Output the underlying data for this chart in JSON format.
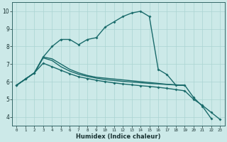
{
  "xlabel": "Humidex (Indice chaleur)",
  "xlim": [
    -0.5,
    23.5
  ],
  "ylim": [
    3.5,
    10.5
  ],
  "bg_color": "#cce9e8",
  "grid_color": "#aad4d2",
  "line_color": "#1a6b6b",
  "line1_x": [
    0,
    1,
    2,
    3,
    4,
    5,
    6,
    7,
    8,
    9,
    10,
    11,
    12,
    13,
    14,
    15,
    16,
    17,
    18,
    19,
    20,
    21,
    22
  ],
  "line1_y": [
    5.8,
    6.15,
    6.5,
    7.4,
    8.0,
    8.4,
    8.4,
    8.1,
    8.4,
    8.5,
    9.1,
    9.4,
    9.7,
    9.9,
    10.0,
    9.7,
    6.7,
    6.4,
    5.8,
    5.8,
    5.1,
    4.6,
    3.9
  ],
  "line2_x": [
    0,
    1,
    2,
    3,
    4,
    5,
    6,
    7,
    8,
    9,
    10,
    11,
    12,
    13,
    14,
    15,
    16,
    17,
    18,
    19
  ],
  "line2_y": [
    5.8,
    6.15,
    6.5,
    7.4,
    7.3,
    7.0,
    6.7,
    6.5,
    6.35,
    6.25,
    6.2,
    6.15,
    6.1,
    6.05,
    6.0,
    5.95,
    5.9,
    5.85,
    5.82,
    5.8
  ],
  "line3_x": [
    0,
    1,
    2,
    3,
    4,
    5,
    6,
    7,
    8,
    9,
    10,
    11,
    12,
    13,
    14,
    15,
    16,
    17,
    18,
    19
  ],
  "line3_y": [
    5.8,
    6.15,
    6.5,
    7.35,
    7.2,
    6.85,
    6.6,
    6.42,
    6.3,
    6.2,
    6.12,
    6.07,
    6.02,
    5.98,
    5.94,
    5.9,
    5.87,
    5.84,
    5.81,
    5.78
  ],
  "line4_x": [
    0,
    1,
    2,
    3,
    4,
    5,
    6,
    7,
    8,
    9,
    10,
    11,
    12,
    13,
    14,
    15,
    16,
    17,
    18,
    19,
    20,
    21,
    22,
    23
  ],
  "line4_y": [
    5.8,
    6.15,
    6.5,
    7.05,
    6.85,
    6.65,
    6.45,
    6.28,
    6.18,
    6.08,
    6.0,
    5.93,
    5.87,
    5.82,
    5.77,
    5.73,
    5.68,
    5.62,
    5.55,
    5.48,
    5.0,
    4.65,
    4.25,
    3.85
  ],
  "yticks": [
    4,
    5,
    6,
    7,
    8,
    9,
    10
  ],
  "xticks": [
    0,
    1,
    2,
    3,
    4,
    5,
    6,
    7,
    8,
    9,
    10,
    11,
    12,
    13,
    14,
    15,
    16,
    17,
    18,
    19,
    20,
    21,
    22,
    23
  ]
}
